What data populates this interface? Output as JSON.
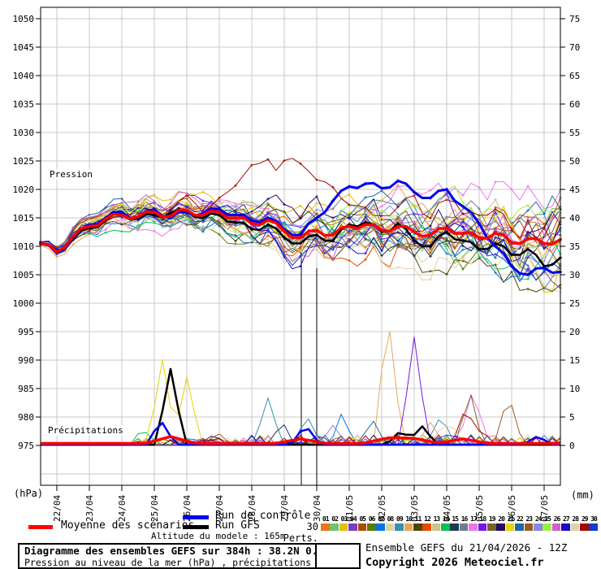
{
  "chart_data": {
    "type": "line",
    "title": "Diagramme des ensembles GEFS sur 384h : 38.2N 0.8W",
    "subtitle": "Pression au niveau de la mer (hPa) , précipitations (mm)",
    "model_info": "Ensemble GEFS du 21/04/2026 - 12Z",
    "copyright": "Copyright 2026 Meteociel.fr",
    "altitude_note": "Altitude du modele : 165m",
    "x_axis": {
      "run_start": "21/04/2026 12Z",
      "hours_total": 384,
      "step_hours": 6,
      "days_total": 16,
      "tick_labels": [
        "22/04",
        "23/04",
        "24/04",
        "25/04",
        "26/04",
        "27/04",
        "28/04",
        "29/04",
        "30/04",
        "01/05",
        "02/05",
        "03/05",
        "04/05",
        "05/05",
        "06/05",
        "07/05"
      ]
    },
    "y_left": {
      "unit": "(hPa)",
      "section_label": "Pression",
      "ticks": [
        1050,
        1045,
        1040,
        1035,
        1030,
        1025,
        1020,
        1015,
        1010,
        1005,
        1000,
        995,
        990,
        985,
        980,
        975
      ]
    },
    "y_right": {
      "unit": "(mm)",
      "section_label": "Précipitations",
      "ticks": [
        75,
        70,
        65,
        60,
        55,
        50,
        45,
        40,
        35,
        30,
        25,
        20,
        15,
        10,
        5,
        0
      ]
    },
    "legend": {
      "mean": "Moyenne des scénarios",
      "control": "Run de contrôle",
      "gfs": "Run GFS",
      "perts": "30 Perts."
    },
    "colors": {
      "mean": "#FF0000",
      "control": "#0000EE",
      "gfs": "#000000",
      "grid": "#C9C9C9",
      "annotation": "#000000"
    },
    "members": [
      {
        "id": "01",
        "color": "#E87820"
      },
      {
        "id": "02",
        "color": "#74C36C"
      },
      {
        "id": "03",
        "color": "#E3C000"
      },
      {
        "id": "04",
        "color": "#7A3FC0"
      },
      {
        "id": "05",
        "color": "#B04A00"
      },
      {
        "id": "06",
        "color": "#5A7A00"
      },
      {
        "id": "07",
        "color": "#0077E0"
      },
      {
        "id": "08",
        "color": "#DCD49E"
      },
      {
        "id": "09",
        "color": "#3A8FB0"
      },
      {
        "id": "10",
        "color": "#E5A85C"
      },
      {
        "id": "11",
        "color": "#4E4600"
      },
      {
        "id": "12",
        "color": "#E64A00"
      },
      {
        "id": "13",
        "color": "#CFC387"
      },
      {
        "id": "14",
        "color": "#00C353"
      },
      {
        "id": "15",
        "color": "#1E3A52"
      },
      {
        "id": "16",
        "color": "#6E7E8C"
      },
      {
        "id": "17",
        "color": "#E878E8"
      },
      {
        "id": "18",
        "color": "#7718E0"
      },
      {
        "id": "19",
        "color": "#7A6228"
      },
      {
        "id": "20",
        "color": "#2A0A60"
      },
      {
        "id": "21",
        "color": "#E8D400"
      },
      {
        "id": "22",
        "color": "#2268A0"
      },
      {
        "id": "23",
        "color": "#9A5A20"
      },
      {
        "id": "24",
        "color": "#8C86E8"
      },
      {
        "id": "25",
        "color": "#9CEE4C"
      },
      {
        "id": "26",
        "color": "#D060C8"
      },
      {
        "id": "27",
        "color": "#2008C0"
      },
      {
        "id": "28",
        "color": "#E2D2A8"
      },
      {
        "id": "29",
        "color": "#A60800"
      },
      {
        "id": "30",
        "color": "#1040C8"
      }
    ],
    "pressure": {
      "mean_12h": [
        1010.5,
        1009.0,
        1011.8,
        1013.5,
        1014.8,
        1015.5,
        1015.2,
        1016.0,
        1015.3,
        1016.4,
        1015.5,
        1016.0,
        1015.0,
        1014.0,
        1014.6,
        1012.6,
        1011.5,
        1012.8,
        1012.0,
        1013.5,
        1013.8,
        1012.8,
        1013.5,
        1012.5,
        1012.0,
        1013.2,
        1012.3,
        1011.5,
        1012.3,
        1010.6,
        1011.3,
        1010.5,
        1011.2
      ],
      "control_12h": [
        1010.5,
        1008.8,
        1011.5,
        1013.8,
        1015.0,
        1016.0,
        1015.0,
        1016.5,
        1015.0,
        1016.0,
        1015.8,
        1016.5,
        1015.5,
        1014.5,
        1015.0,
        1013.0,
        1012.0,
        1015.0,
        1018.0,
        1020.5,
        1021.0,
        1020.2,
        1021.5,
        1019.5,
        1018.5,
        1020.0,
        1017.0,
        1014.0,
        1010.0,
        1006.5,
        1005.0,
        1006.2,
        1005.5
      ],
      "gfs_12h": [
        1010.5,
        1009.2,
        1011.2,
        1013.2,
        1014.5,
        1015.8,
        1014.8,
        1015.5,
        1015.8,
        1016.2,
        1015.0,
        1015.5,
        1014.2,
        1013.0,
        1013.8,
        1011.5,
        1010.5,
        1012.0,
        1011.0,
        1013.8,
        1014.2,
        1012.5,
        1014.0,
        1011.0,
        1010.0,
        1012.5,
        1011.0,
        1009.5,
        1010.5,
        1008.5,
        1009.5,
        1006.5,
        1008.0
      ],
      "member29_outlier_track": [
        [
          5.0,
          1016.0
        ],
        [
          5.5,
          1018.5
        ],
        [
          6.0,
          1021.0
        ],
        [
          6.5,
          1024.5
        ],
        [
          7.0,
          1025.2
        ],
        [
          7.25,
          1023.0
        ],
        [
          7.5,
          1024.8
        ],
        [
          7.75,
          1025.3
        ],
        [
          8.0,
          1024.5
        ],
        [
          8.5,
          1022.0
        ],
        [
          9.0,
          1020.0
        ],
        [
          9.5,
          1017.5
        ],
        [
          10.0,
          1016.5
        ],
        [
          10.5,
          1015.0
        ]
      ],
      "spread_halfwidth_by_day": [
        [
          0,
          0.7
        ],
        [
          2,
          2.0
        ],
        [
          4,
          2.6
        ],
        [
          6,
          3.4
        ],
        [
          8,
          4.2
        ],
        [
          10,
          5.0
        ],
        [
          12,
          5.8
        ],
        [
          14,
          6.8
        ],
        [
          16,
          8.2
        ]
      ]
    },
    "precip": {
      "mean_base_mm": 0.35,
      "mean_bumps": [
        [
          4.0,
          1.2
        ],
        [
          8.0,
          0.8
        ],
        [
          10.7,
          1.0
        ],
        [
          11.5,
          0.9
        ],
        [
          13.0,
          0.8
        ]
      ],
      "control_spikes": [
        [
          3.7,
          4.3
        ],
        [
          8.15,
          3.5
        ],
        [
          15.3,
          1.5
        ]
      ],
      "gfs_spikes": [
        [
          4.0,
          13.3
        ],
        [
          11.1,
          2.6
        ],
        [
          11.75,
          3.2
        ]
      ],
      "member_spikes": [
        {
          "member": "21",
          "day": 3.75,
          "mm": 15.0
        },
        {
          "member": "21",
          "day": 4.5,
          "mm": 12.0
        },
        {
          "member": "14",
          "day": 3.2,
          "mm": 2.5
        },
        {
          "member": "23",
          "day": 5.45,
          "mm": 2.2
        },
        {
          "member": "20",
          "day": 5.3,
          "mm": 1.8
        },
        {
          "member": "15",
          "day": 7.4,
          "mm": 3.5
        },
        {
          "member": "09",
          "day": 7.0,
          "mm": 8.3
        },
        {
          "member": "09",
          "day": 8.2,
          "mm": 5.2
        },
        {
          "member": "24",
          "day": 9.0,
          "mm": 3.5
        },
        {
          "member": "07",
          "day": 9.3,
          "mm": 4.5
        },
        {
          "member": "22",
          "day": 10.2,
          "mm": 4.2
        },
        {
          "member": "10",
          "day": 10.7,
          "mm": 22.5
        },
        {
          "member": "18",
          "day": 11.5,
          "mm": 19.0
        },
        {
          "member": "10",
          "day": 12.0,
          "mm": 4.0
        },
        {
          "member": "09",
          "day": 12.3,
          "mm": 5.0
        },
        {
          "member": "28",
          "day": 12.6,
          "mm": 4.3
        },
        {
          "member": "29",
          "day": 13.1,
          "mm": 7.0
        },
        {
          "member": "19",
          "day": 13.2,
          "mm": 8.7
        },
        {
          "member": "17",
          "day": 13.3,
          "mm": 10.0
        },
        {
          "member": "23",
          "day": 14.4,
          "mm": 9.0
        }
      ]
    },
    "annotations": {
      "vertical_lines_day": [
        8.025,
        8.5
      ]
    }
  }
}
